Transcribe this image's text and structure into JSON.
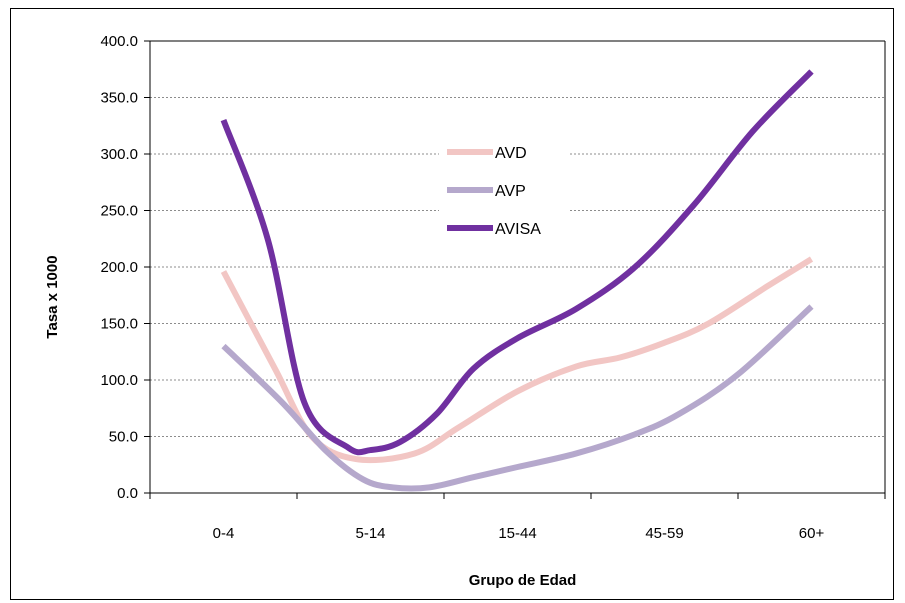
{
  "chart_data": {
    "type": "line",
    "title": "",
    "xlabel": "Grupo de Edad",
    "ylabel": "Tasa x 1000",
    "categories": [
      "0-4",
      "5-14",
      "15-44",
      "45-59",
      "60+"
    ],
    "ylim": [
      0,
      400
    ],
    "yticks": [
      "0.0",
      "50.0",
      "100.0",
      "150.0",
      "200.0",
      "250.0",
      "300.0",
      "350.0",
      "400.0"
    ],
    "grid": true,
    "legend_position": "center-top",
    "smooth": true,
    "series": [
      {
        "name": "AVD",
        "color": "#f2c6c4",
        "x": [
          0,
          0.35,
          0.6,
          0.9,
          1.3,
          1.6,
          2.0,
          2.4,
          2.7,
          3.0,
          3.3,
          3.7,
          4.0
        ],
        "values": [
          196,
          110,
          50,
          30,
          35,
          58,
          90,
          112,
          120,
          133,
          150,
          183,
          207
        ]
      },
      {
        "name": "AVP",
        "color": "#b5a8cc",
        "x": [
          0,
          0.4,
          0.7,
          0.95,
          1.15,
          1.4,
          1.7,
          2.0,
          2.4,
          2.8,
          3.1,
          3.5,
          4.0
        ],
        "values": [
          130,
          80,
          37,
          12,
          5,
          5,
          14,
          23,
          35,
          52,
          70,
          105,
          165
        ]
      },
      {
        "name": "AVISA",
        "color": "#7030a0",
        "x": [
          0,
          0.3,
          0.55,
          0.85,
          1.0,
          1.2,
          1.45,
          1.7,
          2.0,
          2.4,
          2.8,
          3.2,
          3.6,
          4.0
        ],
        "values": [
          330,
          225,
          80,
          40,
          38,
          45,
          70,
          110,
          137,
          163,
          200,
          255,
          320,
          373
        ]
      }
    ]
  }
}
